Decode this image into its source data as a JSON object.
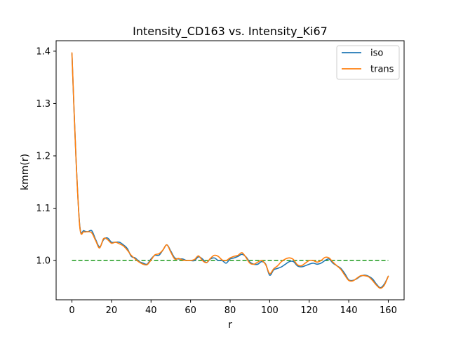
{
  "chart_data": {
    "type": "line",
    "title": "Intensity_CD163 vs. Intensity_Ki67",
    "xlabel": "r",
    "ylabel": "kmm(r)",
    "xlim": [
      -8,
      168
    ],
    "ylim": [
      0.925,
      1.42
    ],
    "xticks": [
      0,
      20,
      40,
      60,
      80,
      100,
      120,
      140,
      160
    ],
    "yticks": [
      1.0,
      1.1,
      1.2,
      1.3,
      1.4
    ],
    "ytick_labels": [
      "1.0",
      "1.1",
      "1.2",
      "1.3",
      "1.4"
    ],
    "legend_position": "top-right",
    "grid": false,
    "x": [
      0,
      2,
      4,
      6,
      8,
      10,
      12,
      14,
      16,
      18,
      20,
      22,
      24,
      26,
      28,
      30,
      32,
      34,
      36,
      38,
      40,
      42,
      44,
      46,
      48,
      50,
      52,
      54,
      56,
      58,
      60,
      62,
      64,
      66,
      68,
      70,
      72,
      74,
      76,
      78,
      80,
      82,
      84,
      86,
      88,
      90,
      92,
      94,
      96,
      98,
      100,
      102,
      104,
      106,
      108,
      110,
      112,
      114,
      116,
      118,
      120,
      122,
      124,
      126,
      128,
      130,
      132,
      134,
      136,
      138,
      140,
      142,
      144,
      146,
      148,
      150,
      152,
      154,
      156,
      158,
      160
    ],
    "series": [
      {
        "name": "iso",
        "color": "#1f77b4",
        "values": [
          1.395,
          1.2,
          1.065,
          1.057,
          1.055,
          1.057,
          1.04,
          1.026,
          1.04,
          1.043,
          1.035,
          1.035,
          1.035,
          1.03,
          1.023,
          1.008,
          1.005,
          0.998,
          0.995,
          0.993,
          1.003,
          1.01,
          1.01,
          1.02,
          1.03,
          1.018,
          1.005,
          1.003,
          1.003,
          1.0,
          1.0,
          1.0,
          1.007,
          1.003,
          0.996,
          1.003,
          1.005,
          1.0,
          1.0,
          0.995,
          1.003,
          1.005,
          1.008,
          1.012,
          1.007,
          0.997,
          0.993,
          0.993,
          0.998,
          0.993,
          0.972,
          0.982,
          0.985,
          0.988,
          0.993,
          0.998,
          0.998,
          0.99,
          0.988,
          0.99,
          0.993,
          0.995,
          0.993,
          0.995,
          1.0,
          1.003,
          0.995,
          0.99,
          0.985,
          0.975,
          0.963,
          0.962,
          0.965,
          0.97,
          0.972,
          0.97,
          0.965,
          0.955,
          0.948,
          0.955,
          0.97
        ]
      },
      {
        "name": "trans",
        "color": "#ff7f0e",
        "values": [
          1.397,
          1.2,
          1.063,
          1.055,
          1.055,
          1.053,
          1.038,
          1.024,
          1.042,
          1.04,
          1.033,
          1.035,
          1.032,
          1.028,
          1.02,
          1.01,
          1.003,
          0.997,
          0.993,
          0.992,
          1.001,
          1.011,
          1.013,
          1.02,
          1.03,
          1.016,
          1.003,
          1.004,
          1.001,
          1.0,
          1.0,
          1.002,
          1.009,
          1.0,
          0.996,
          1.004,
          1.01,
          1.008,
          1.001,
          1.0,
          1.005,
          1.008,
          1.01,
          1.015,
          1.006,
          0.995,
          0.993,
          0.997,
          1.0,
          0.992,
          0.975,
          0.984,
          0.99,
          0.998,
          1.003,
          1.005,
          1.002,
          0.992,
          0.99,
          0.995,
          1.0,
          1.0,
          0.997,
          1.0,
          1.006,
          1.005,
          0.997,
          0.99,
          0.983,
          0.972,
          0.962,
          0.961,
          0.966,
          0.971,
          0.971,
          0.969,
          0.962,
          0.953,
          0.947,
          0.953,
          0.97
        ]
      }
    ],
    "reference_line": {
      "y": 1.0,
      "x_range": [
        0,
        160
      ],
      "color": "#2ca02c",
      "style": "dashed"
    }
  }
}
